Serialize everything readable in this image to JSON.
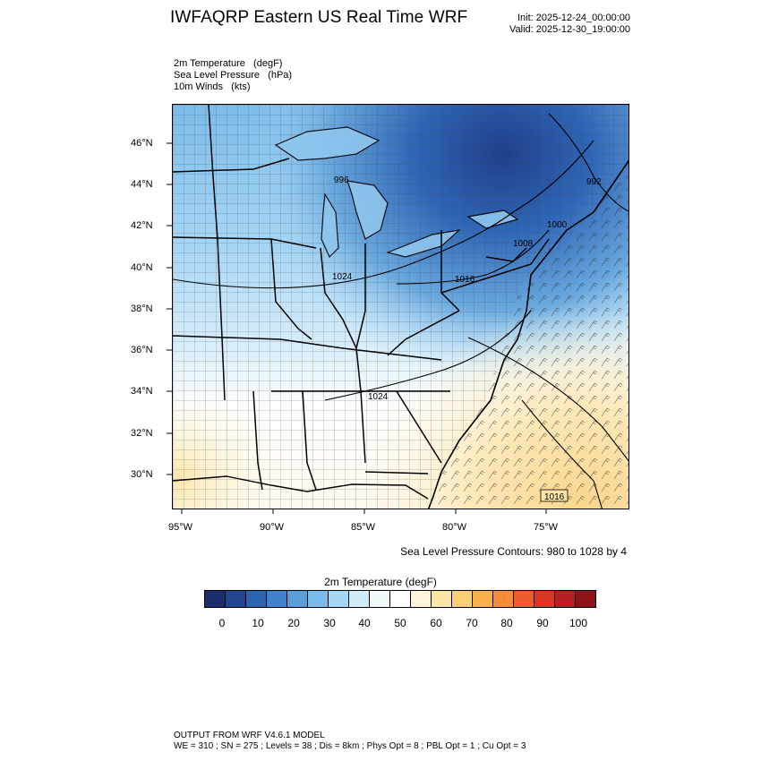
{
  "header": {
    "title": "IWFAQRP Eastern US Real Time WRF",
    "init": "Init: 2025-12-24_00:00:00",
    "valid": "Valid: 2025-12-30_19:00:00"
  },
  "fields": {
    "line1": "2m Temperature   (degF)",
    "line2": "Sea Level Pressure   (hPa)",
    "line3": "10m Winds   (kts)"
  },
  "map": {
    "lat_labels": [
      "46°N",
      "44°N",
      "42°N",
      "40°N",
      "38°N",
      "36°N",
      "34°N",
      "32°N",
      "30°N"
    ],
    "lon_labels": [
      "95°W",
      "90°W",
      "85°W",
      "80°W",
      "75°W"
    ],
    "pressure_labels": [
      "996",
      "1024",
      "1016",
      "1008",
      "1000",
      "992",
      "1024",
      "1016"
    ],
    "contour_note": "Sea Level Pressure Contours: 980 to 1028 by 4"
  },
  "colorbar": {
    "title": "2m Temperature  (degF)",
    "labels": [
      "0",
      "10",
      "20",
      "30",
      "40",
      "50",
      "60",
      "70",
      "80",
      "90",
      "100"
    ],
    "colors": [
      "#1a2e6b",
      "#21468f",
      "#2c64b0",
      "#3f82c9",
      "#5a9ed9",
      "#7cbbe9",
      "#a6d6f5",
      "#d0ebfa",
      "#f2f9fd",
      "#ffffff",
      "#fff4d9",
      "#fde5a8",
      "#fbcf76",
      "#f9b14c",
      "#f68b3a",
      "#ee5c2e",
      "#d93424",
      "#b51e22",
      "#8e1417"
    ]
  },
  "footer": {
    "line1": "OUTPUT FROM WRF V4.6.1 MODEL",
    "line2": "WE = 310 ; SN = 275 ; Levels = 38 ; Dis = 8km ; Phys Opt = 8 ; PBL Opt = 1 ; Cu Opt = 3"
  }
}
